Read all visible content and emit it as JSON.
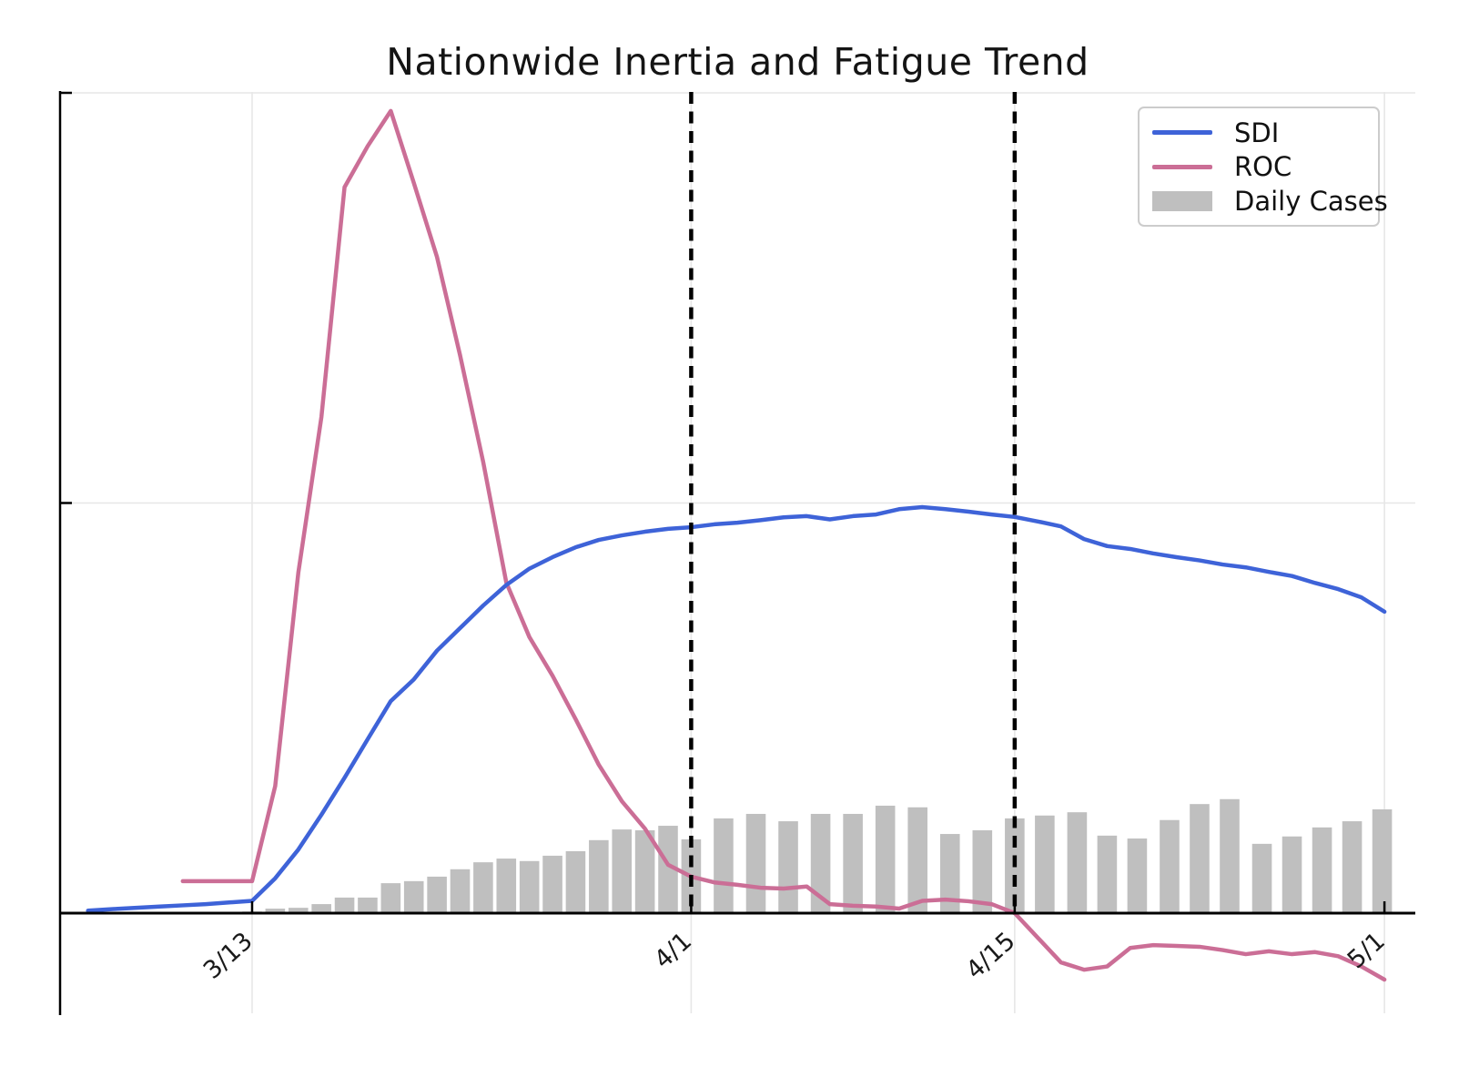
{
  "chart_data": {
    "type": "line+bar",
    "title": "Nationwide Inertia and Fatigue Trend",
    "xlabel": "",
    "ylabel": "",
    "x_unit": "days since 3/13",
    "xlim": [
      -8.31,
      50.33
    ],
    "ylim": [
      -0.249,
      2.0
    ],
    "grid": true,
    "x_ticks": [
      {
        "d": 0,
        "label": "3/13"
      },
      {
        "d": 19,
        "label": "4/1"
      },
      {
        "d": 33,
        "label": "4/15"
      },
      {
        "d": 49,
        "label": "5/1"
      }
    ],
    "y_ticks_unlabeled": [
      0,
      1,
      2
    ],
    "vlines_dashed_at_days": [
      19,
      33
    ],
    "legend_position": "upper right",
    "series": [
      {
        "name": "SDI",
        "type": "line",
        "color": "#3E63D8",
        "points": [
          [
            -7.1,
            0.006
          ],
          [
            -6,
            0.01
          ],
          [
            -5,
            0.013
          ],
          [
            -4,
            0.016
          ],
          [
            -3,
            0.019
          ],
          [
            -2,
            0.022
          ],
          [
            -1,
            0.026
          ],
          [
            0,
            0.03
          ],
          [
            1,
            0.085
          ],
          [
            2,
            0.155
          ],
          [
            3,
            0.24
          ],
          [
            4,
            0.33
          ],
          [
            5,
            0.424
          ],
          [
            6,
            0.517
          ],
          [
            7,
            0.57
          ],
          [
            8,
            0.64
          ],
          [
            9,
            0.695
          ],
          [
            10,
            0.75
          ],
          [
            11,
            0.8
          ],
          [
            12,
            0.84
          ],
          [
            13,
            0.868
          ],
          [
            14,
            0.892
          ],
          [
            15,
            0.91
          ],
          [
            16,
            0.921
          ],
          [
            17,
            0.93
          ],
          [
            18,
            0.937
          ],
          [
            19,
            0.941
          ],
          [
            20,
            0.948
          ],
          [
            21,
            0.952
          ],
          [
            22,
            0.958
          ],
          [
            23,
            0.965
          ],
          [
            24,
            0.968
          ],
          [
            25,
            0.96
          ],
          [
            26,
            0.968
          ],
          [
            27,
            0.972
          ],
          [
            28,
            0.985
          ],
          [
            29,
            0.99
          ],
          [
            30,
            0.985
          ],
          [
            31,
            0.979
          ],
          [
            32,
            0.972
          ],
          [
            33,
            0.966
          ],
          [
            34,
            0.955
          ],
          [
            35,
            0.943
          ],
          [
            36,
            0.912
          ],
          [
            37,
            0.895
          ],
          [
            38,
            0.888
          ],
          [
            39,
            0.877
          ],
          [
            40,
            0.868
          ],
          [
            41,
            0.86
          ],
          [
            42,
            0.85
          ],
          [
            43,
            0.843
          ],
          [
            44,
            0.832
          ],
          [
            45,
            0.822
          ],
          [
            46,
            0.805
          ],
          [
            47,
            0.79
          ],
          [
            48,
            0.77
          ],
          [
            49,
            0.735
          ]
        ]
      },
      {
        "name": "ROC",
        "type": "line",
        "color": "#CB6E96",
        "points": [
          [
            -3,
            0.078
          ],
          [
            -2,
            0.078
          ],
          [
            -1,
            0.078
          ],
          [
            0,
            0.078
          ],
          [
            1,
            0.31
          ],
          [
            2,
            0.83
          ],
          [
            3,
            1.21
          ],
          [
            4,
            1.77
          ],
          [
            5,
            1.87
          ],
          [
            6,
            1.956
          ],
          [
            7,
            1.78
          ],
          [
            8,
            1.6
          ],
          [
            9,
            1.36
          ],
          [
            10,
            1.1
          ],
          [
            11,
            0.806
          ],
          [
            12,
            0.673
          ],
          [
            13,
            0.579
          ],
          [
            14,
            0.473
          ],
          [
            15,
            0.362
          ],
          [
            16,
            0.273
          ],
          [
            17,
            0.206
          ],
          [
            18,
            0.118
          ],
          [
            19,
            0.089
          ],
          [
            20,
            0.075
          ],
          [
            21,
            0.069
          ],
          [
            22,
            0.062
          ],
          [
            23,
            0.06
          ],
          [
            24,
            0.065
          ],
          [
            25,
            0.022
          ],
          [
            26,
            0.018
          ],
          [
            27,
            0.016
          ],
          [
            28,
            0.011
          ],
          [
            29,
            0.03
          ],
          [
            30,
            0.033
          ],
          [
            31,
            0.029
          ],
          [
            32,
            0.022
          ],
          [
            33,
            0.0
          ],
          [
            34,
            -0.06
          ],
          [
            35,
            -0.12
          ],
          [
            36,
            -0.138
          ],
          [
            37,
            -0.13
          ],
          [
            38,
            -0.085
          ],
          [
            39,
            -0.078
          ],
          [
            40,
            -0.08
          ],
          [
            41,
            -0.082
          ],
          [
            42,
            -0.09
          ],
          [
            43,
            -0.1
          ],
          [
            44,
            -0.093
          ],
          [
            45,
            -0.1
          ],
          [
            46,
            -0.095
          ],
          [
            47,
            -0.105
          ],
          [
            48,
            -0.13
          ],
          [
            49,
            -0.162
          ]
        ]
      },
      {
        "name": "Daily Cases",
        "type": "bar",
        "color": "#BFBFBF",
        "bar_width_days": 0.85,
        "points": [
          [
            0,
            0.004
          ],
          [
            1,
            0.011
          ],
          [
            2,
            0.013
          ],
          [
            3,
            0.022
          ],
          [
            4,
            0.038
          ],
          [
            5,
            0.038
          ],
          [
            6,
            0.073
          ],
          [
            7,
            0.078
          ],
          [
            8,
            0.089
          ],
          [
            9,
            0.107
          ],
          [
            10,
            0.124
          ],
          [
            11,
            0.133
          ],
          [
            12,
            0.127
          ],
          [
            13,
            0.14
          ],
          [
            14,
            0.151
          ],
          [
            15,
            0.178
          ],
          [
            16,
            0.204
          ],
          [
            17,
            0.202
          ],
          [
            18,
            0.213
          ],
          [
            19,
            0.18
          ],
          [
            20.4,
            0.231
          ],
          [
            21.8,
            0.242
          ],
          [
            23.2,
            0.224
          ],
          [
            24.6,
            0.242
          ],
          [
            26.0,
            0.242
          ],
          [
            27.4,
            0.262
          ],
          [
            28.8,
            0.258
          ],
          [
            30.2,
            0.193
          ],
          [
            31.6,
            0.202
          ],
          [
            33.0,
            0.231
          ],
          [
            34.3,
            0.238
          ],
          [
            35.7,
            0.246
          ],
          [
            37.0,
            0.189
          ],
          [
            38.3,
            0.182
          ],
          [
            39.7,
            0.227
          ],
          [
            41.0,
            0.266
          ],
          [
            42.3,
            0.278
          ],
          [
            43.7,
            0.169
          ],
          [
            45.0,
            0.187
          ],
          [
            46.3,
            0.209
          ],
          [
            47.6,
            0.224
          ],
          [
            48.9,
            0.253
          ]
        ]
      }
    ],
    "style": {
      "axis_color": "#000000",
      "grid_color": "#E7E7E7",
      "dashed_line_color": "#000000",
      "tick_label_color": "#1a1a1a",
      "tick_label_rotation_deg": -42
    }
  },
  "legend": {
    "entries": [
      {
        "label": "SDI",
        "swatch": "line"
      },
      {
        "label": "ROC",
        "swatch": "line"
      },
      {
        "label": "Daily Cases",
        "swatch": "bar"
      }
    ]
  }
}
